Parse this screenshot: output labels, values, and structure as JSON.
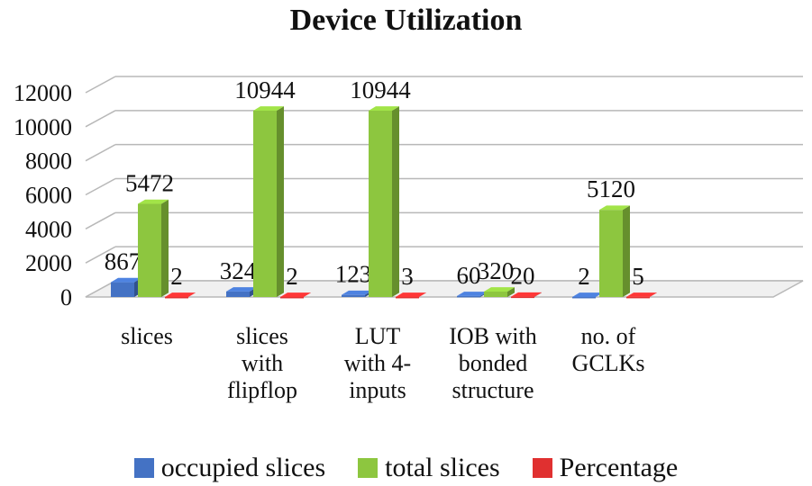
{
  "chart_data": {
    "type": "bar",
    "title": "Device Utilization",
    "categories": [
      [
        "slices"
      ],
      [
        "slices",
        "with",
        "flipflop"
      ],
      [
        "LUT",
        "with 4-",
        "inputs"
      ],
      [
        "IOB with",
        "bonded",
        "structure"
      ],
      [
        "no. of",
        "GCLKs"
      ]
    ],
    "series": [
      {
        "name": "occupied slices",
        "color": "#4472c4",
        "values": [
          867,
          324,
          123,
          60,
          2
        ]
      },
      {
        "name": "total slices",
        "color": "#8dc63f",
        "values": [
          5472,
          10944,
          10944,
          320,
          5120
        ]
      },
      {
        "name": "Percentage",
        "color": "#e03030",
        "values": [
          2,
          2,
          3,
          20,
          5
        ]
      }
    ],
    "ylim": [
      0,
      12000
    ],
    "yticks": [
      0,
      2000,
      4000,
      6000,
      8000,
      10000,
      12000
    ],
    "grid": true,
    "legend_position": "bottom"
  }
}
